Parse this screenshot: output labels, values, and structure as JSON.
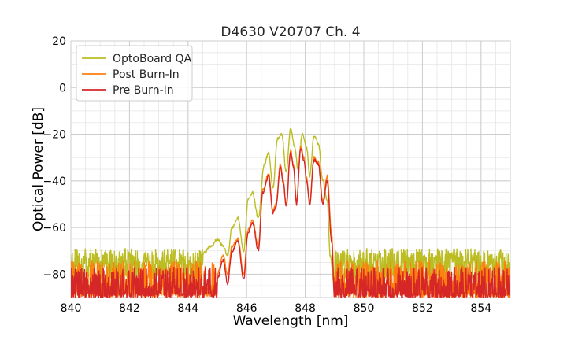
{
  "chart_data": {
    "type": "line",
    "title": "D4630 V20707 Ch. 4",
    "xlabel": "Wavelength [nm]",
    "ylabel": "Optical Power [dB]",
    "xlim": [
      840,
      855
    ],
    "ylim": [
      -90,
      20
    ],
    "x_ticks": [
      840,
      842,
      844,
      846,
      848,
      850,
      852,
      854
    ],
    "y_ticks": [
      -80,
      -60,
      -40,
      -20,
      0,
      20
    ],
    "x_tick_labels": [
      "840",
      "842",
      "844",
      "846",
      "848",
      "850",
      "852",
      "854"
    ],
    "y_tick_labels": [
      "−80",
      "−60",
      "−40",
      "−20",
      "0",
      "20"
    ],
    "x_minor_step": 0.5,
    "y_minor_step": 5,
    "grid": true,
    "legend_position": "top-left",
    "series": [
      {
        "name": "OptoBoard QA",
        "color": "#bcbd22",
        "noise_floor": -73,
        "noise_amplitude": 4,
        "noise_spikes_to": -82,
        "spectrum": {
          "x": [
            844.5,
            844.8,
            845.0,
            845.2,
            845.35,
            845.5,
            845.7,
            845.9,
            846.05,
            846.2,
            846.4,
            846.6,
            846.75,
            846.9,
            847.05,
            847.2,
            847.35,
            847.5,
            847.65,
            847.75,
            847.9,
            848.05,
            848.15,
            848.3,
            848.45,
            848.6,
            848.75,
            848.85,
            849.0
          ],
          "y": [
            -71,
            -68,
            -65,
            -68,
            -72,
            -60,
            -56,
            -70,
            -48,
            -45,
            -56,
            -33,
            -28,
            -43,
            -22,
            -20,
            -36,
            -18,
            -26,
            -35,
            -20,
            -26,
            -38,
            -21,
            -24,
            -40,
            -48,
            -72,
            -85
          ]
        }
      },
      {
        "name": "Post Burn-In",
        "color": "#ff7f0e",
        "noise_floor": -82,
        "noise_amplitude": 8,
        "noise_spikes_to": -90,
        "spectrum": {
          "x": [
            845.0,
            845.2,
            845.35,
            845.5,
            845.7,
            845.9,
            846.05,
            846.2,
            846.4,
            846.55,
            846.75,
            846.9,
            847.0,
            847.15,
            847.25,
            847.35,
            847.5,
            847.6,
            847.7,
            847.85,
            847.95,
            848.05,
            848.15,
            848.3,
            848.45,
            848.6,
            848.75,
            848.9,
            849.0
          ],
          "y": [
            -80,
            -72,
            -80,
            -68,
            -65,
            -80,
            -61,
            -57,
            -68,
            -44,
            -37,
            -53,
            -50,
            -33,
            -40,
            -50,
            -27,
            -33,
            -49,
            -25,
            -30,
            -39,
            -49,
            -30,
            -32,
            -49,
            -38,
            -62,
            -88
          ]
        }
      },
      {
        "name": "Pre Burn-In",
        "color": "#d62728",
        "noise_floor": -84,
        "noise_amplitude": 7,
        "noise_spikes_to": -90,
        "spectrum": {
          "x": [
            845.0,
            845.2,
            845.35,
            845.5,
            845.7,
            845.9,
            846.05,
            846.2,
            846.4,
            846.55,
            846.75,
            846.9,
            847.0,
            847.15,
            847.25,
            847.35,
            847.5,
            847.6,
            847.7,
            847.85,
            847.95,
            848.05,
            848.15,
            848.3,
            848.45,
            848.6,
            848.75,
            848.9,
            849.0
          ],
          "y": [
            -82,
            -74,
            -84,
            -70,
            -66,
            -82,
            -62,
            -58,
            -70,
            -45,
            -38,
            -54,
            -51,
            -34,
            -41,
            -51,
            -28,
            -34,
            -50,
            -26,
            -31,
            -40,
            -50,
            -31,
            -33,
            -50,
            -40,
            -66,
            -90
          ]
        }
      }
    ]
  }
}
